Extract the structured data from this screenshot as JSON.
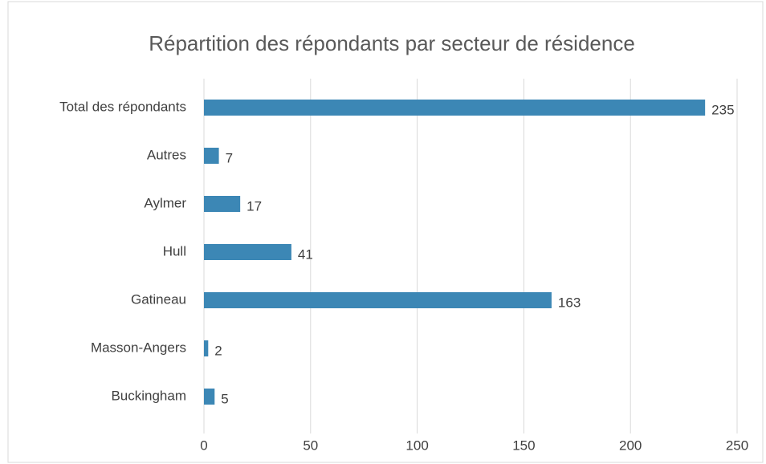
{
  "chart_data": {
    "type": "bar",
    "orientation": "horizontal",
    "title": "Répartition des répondants par secteur de résidence",
    "categories": [
      "Total des répondants",
      "Autres",
      "Aylmer",
      "Hull",
      "Gatineau",
      "Masson-Angers",
      "Buckingham"
    ],
    "values": [
      235,
      7,
      17,
      41,
      163,
      2,
      5
    ],
    "color": "#3c87b5",
    "xlim": [
      0,
      250
    ],
    "xticks": [
      0,
      50,
      100,
      150,
      200,
      250
    ],
    "grid": true
  }
}
